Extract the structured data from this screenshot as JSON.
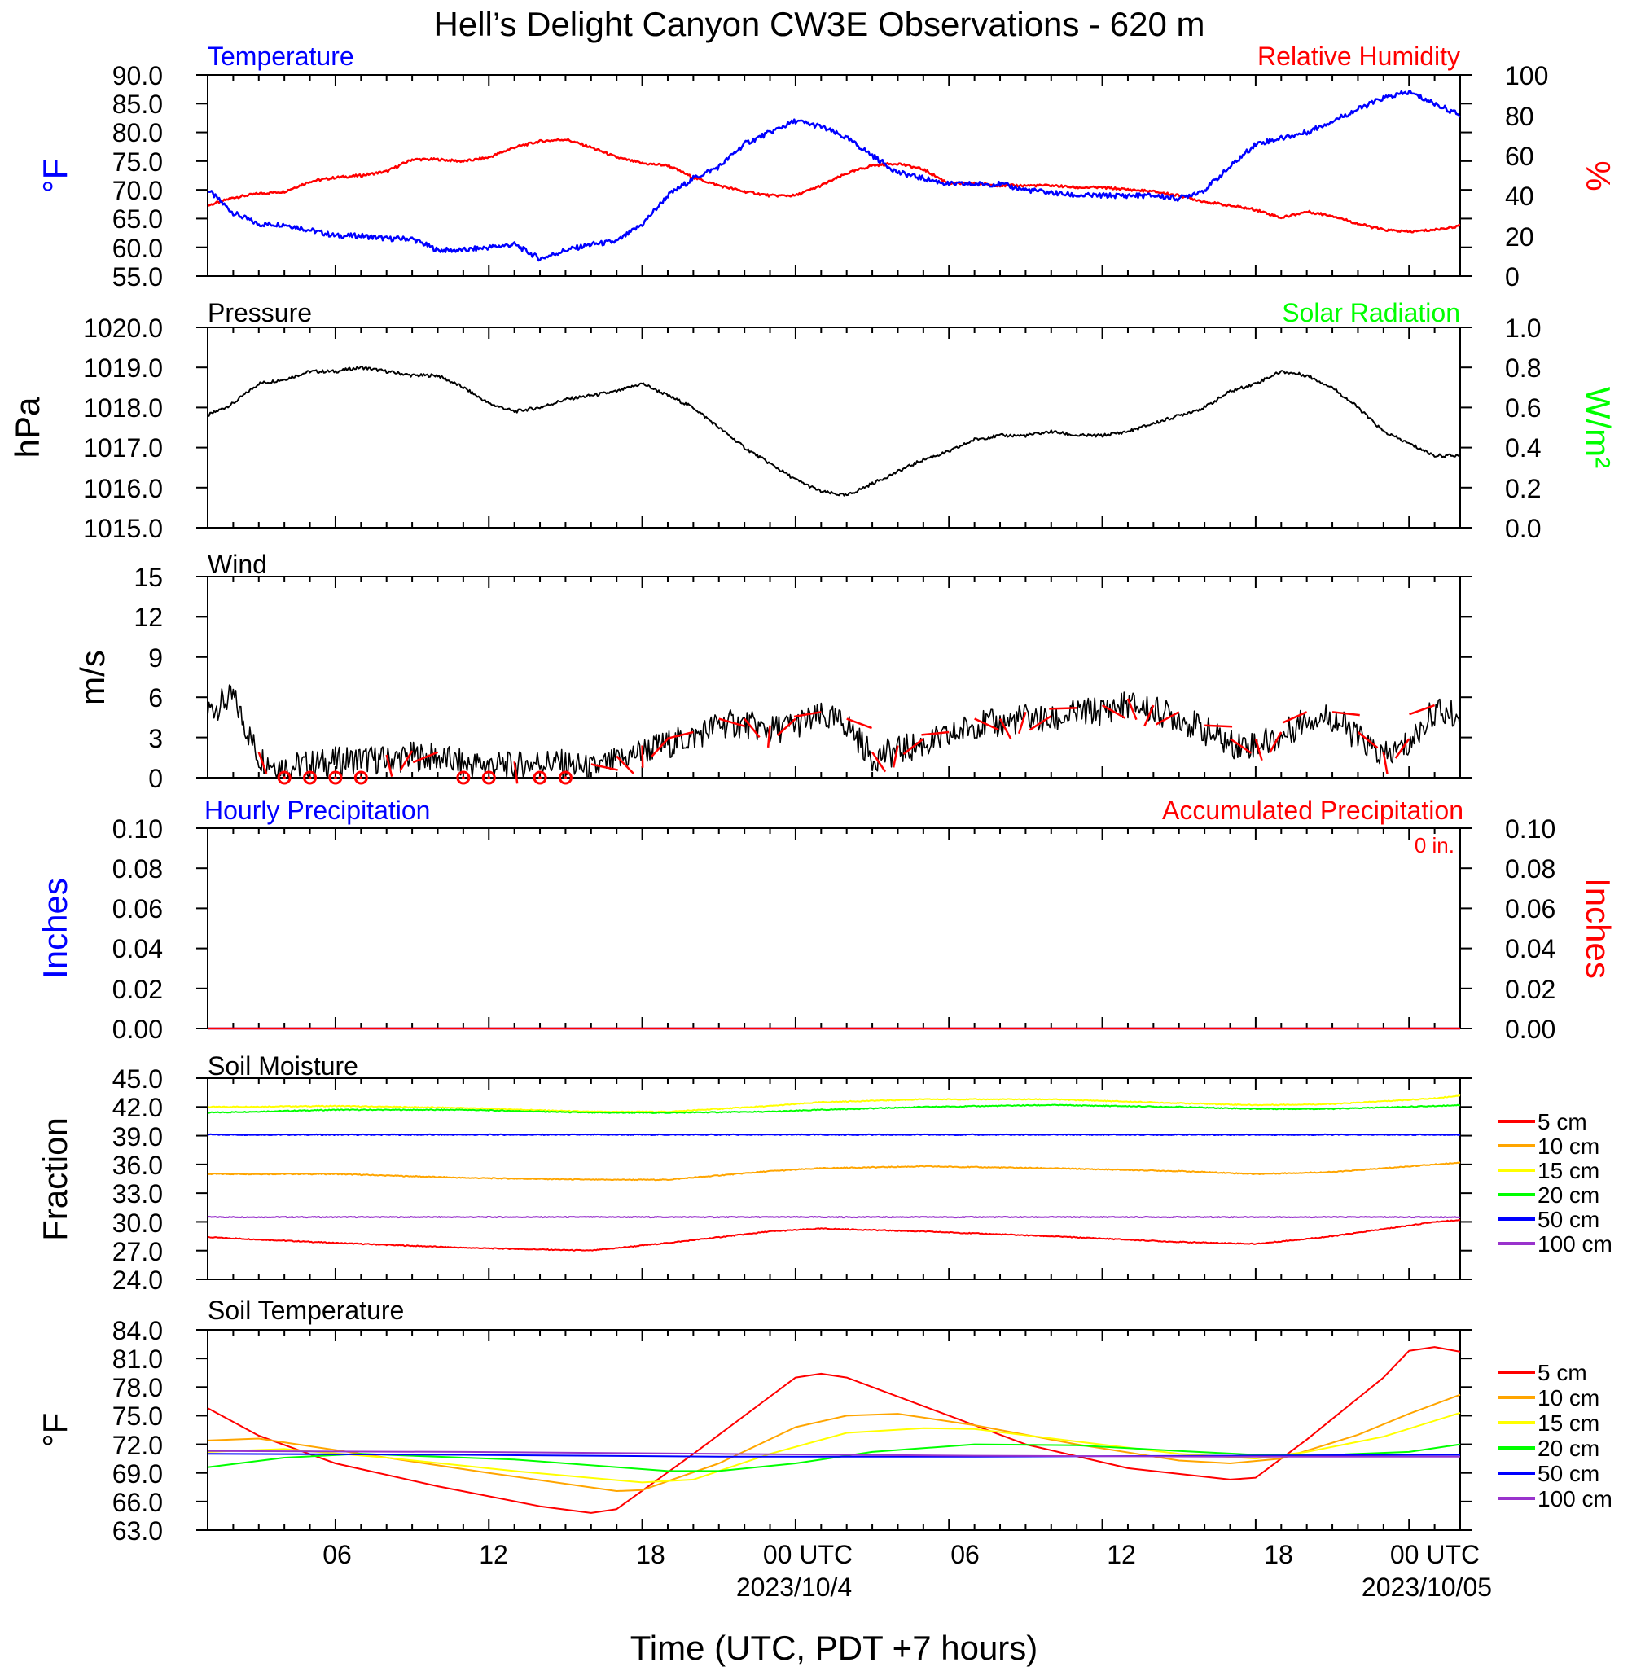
{
  "title": "Hell’s Delight Canyon CW3E Observations - 620 m",
  "x_axis": {
    "title": "Time (UTC, PDT +7 hours)",
    "ticks": [
      "06",
      "12",
      "18",
      "00 UTC",
      "06",
      "12",
      "18",
      "00 UTC"
    ],
    "dates": [
      "2023/10/4",
      "2023/10/05"
    ]
  },
  "colors": {
    "temperature": "#0000ff",
    "humidity": "#ff0000",
    "pressure": "#000000",
    "solar": "#00ff00",
    "wind": "#000000",
    "barbs": "#ff0000",
    "hourly_precip": "#0000ff",
    "accum_precip": "#ff0000",
    "5 cm": "#ff0000",
    "10 cm": "#ffa500",
    "15 cm": "#ffff00",
    "20 cm": "#00ff00",
    "50 cm": "#0000ff",
    "100 cm": "#9933cc"
  },
  "panels": {
    "temp": {
      "left_title": "Temperature",
      "right_title": "Relative Humidity",
      "left_unit": "°F",
      "right_unit": "%",
      "left_ticks": [
        "90.0",
        "85.0",
        "80.0",
        "75.0",
        "70.0",
        "65.0",
        "60.0",
        "55.0"
      ],
      "right_ticks": [
        "100",
        "80",
        "60",
        "40",
        "20",
        "0"
      ]
    },
    "pressure": {
      "left_title": "Pressure",
      "right_title": "Solar Radiation",
      "left_unit": "hPa",
      "right_unit": "W/m²",
      "left_ticks": [
        "1020.0",
        "1019.0",
        "1018.0",
        "1017.0",
        "1016.0",
        "1015.0"
      ],
      "right_ticks": [
        "1.0",
        "0.8",
        "0.6",
        "0.4",
        "0.2",
        "0.0"
      ]
    },
    "wind": {
      "left_title": "Wind",
      "left_unit": "m/s",
      "left_ticks": [
        "15",
        "12",
        "9",
        "6",
        "3",
        "0"
      ]
    },
    "precip": {
      "left_title": "Hourly Precipitation",
      "right_title": "Accumulated Precipitation",
      "total_label": "0 in.",
      "left_unit": "Inches",
      "right_unit": "Inches",
      "left_ticks": [
        "0.10",
        "0.08",
        "0.06",
        "0.04",
        "0.02",
        "0.00"
      ],
      "right_ticks": [
        "0.10",
        "0.08",
        "0.06",
        "0.04",
        "0.02",
        "0.00"
      ]
    },
    "soil_moisture": {
      "left_title": "Soil Moisture",
      "left_unit": "Fraction",
      "left_ticks": [
        "45.0",
        "42.0",
        "39.0",
        "36.0",
        "33.0",
        "30.0",
        "27.0",
        "24.0"
      ],
      "legend": [
        "5 cm",
        "10 cm",
        "15 cm",
        "20 cm",
        "50 cm",
        "100 cm"
      ]
    },
    "soil_temp": {
      "left_title": "Soil Temperature",
      "left_unit": "°F",
      "left_ticks": [
        "84.0",
        "81.0",
        "78.0",
        "75.0",
        "72.0",
        "69.0",
        "66.0",
        "63.0"
      ],
      "legend": [
        "5 cm",
        "10 cm",
        "15 cm",
        "20 cm",
        "50 cm",
        "100 cm"
      ]
    }
  },
  "chart_data": [
    {
      "panel": "temp",
      "type": "line",
      "x_unit": "hours since 2023-10-03 01:00 UTC",
      "xlim": [
        0,
        49
      ],
      "series": [
        {
          "name": "Temperature",
          "axis": "left",
          "ylim": [
            55,
            90
          ],
          "x": [
            0,
            1,
            2,
            3,
            4,
            5,
            6,
            7,
            8,
            9,
            10,
            11,
            12,
            13,
            14,
            15,
            16,
            17,
            18,
            19,
            20,
            21,
            22,
            23,
            24,
            25,
            26,
            27,
            28,
            29,
            30,
            31,
            32,
            33,
            34,
            35,
            36,
            37,
            38,
            39,
            40,
            41,
            42,
            43,
            44,
            45,
            46,
            47,
            48,
            49
          ],
          "y": [
            70,
            66,
            64,
            64,
            63,
            62,
            62,
            61.5,
            61.5,
            59.5,
            59.5,
            60,
            60.5,
            58,
            59.5,
            60.5,
            61,
            64,
            69,
            72,
            74,
            78,
            80,
            82,
            81,
            79,
            76,
            73,
            72,
            71,
            71,
            71,
            70,
            69.5,
            69,
            69,
            69,
            69,
            68.5,
            70,
            74,
            78,
            79,
            80,
            82,
            84,
            86,
            87,
            85,
            83
          ]
        },
        {
          "name": "Relative Humidity",
          "axis": "right",
          "ylim": [
            0,
            100
          ],
          "x": [
            0,
            1,
            2,
            3,
            4,
            5,
            6,
            7,
            8,
            9,
            10,
            11,
            12,
            13,
            14,
            15,
            16,
            17,
            18,
            19,
            20,
            21,
            22,
            23,
            24,
            25,
            26,
            27,
            28,
            29,
            30,
            31,
            32,
            33,
            34,
            35,
            36,
            37,
            38,
            39,
            40,
            41,
            42,
            43,
            44,
            45,
            46,
            47,
            48,
            49
          ],
          "y": [
            35,
            39,
            41,
            42,
            47,
            49,
            50,
            52,
            58,
            58,
            57,
            59,
            64,
            67,
            68,
            64,
            59,
            56,
            55,
            49,
            45,
            42,
            40,
            40,
            45,
            51,
            55,
            56,
            53,
            46,
            46,
            45,
            45,
            45,
            44,
            44,
            43,
            42,
            40,
            37,
            35,
            33,
            29,
            32,
            30,
            26,
            23,
            22,
            23,
            25
          ]
        }
      ]
    },
    {
      "panel": "pressure",
      "type": "line",
      "series": [
        {
          "name": "Pressure",
          "axis": "left",
          "ylim": [
            1015,
            1020
          ],
          "x": [
            0,
            1,
            2,
            3,
            4,
            5,
            6,
            7,
            8,
            9,
            10,
            11,
            12,
            13,
            14,
            15,
            16,
            17,
            18,
            19,
            20,
            21,
            22,
            23,
            24,
            25,
            26,
            27,
            28,
            29,
            30,
            31,
            32,
            33,
            34,
            35,
            36,
            37,
            38,
            39,
            40,
            41,
            42,
            43,
            44,
            45,
            46,
            47,
            48,
            49
          ],
          "y": [
            1017.8,
            1018.1,
            1018.6,
            1018.7,
            1018.9,
            1018.9,
            1019.0,
            1018.9,
            1018.8,
            1018.8,
            1018.5,
            1018.1,
            1017.9,
            1018.0,
            1018.2,
            1018.3,
            1018.4,
            1018.6,
            1018.3,
            1018.0,
            1017.5,
            1017.0,
            1016.6,
            1016.2,
            1015.9,
            1015.8,
            1016.1,
            1016.4,
            1016.7,
            1016.9,
            1017.2,
            1017.3,
            1017.3,
            1017.4,
            1017.3,
            1017.3,
            1017.4,
            1017.6,
            1017.8,
            1018.0,
            1018.4,
            1018.6,
            1018.9,
            1018.8,
            1018.5,
            1018.0,
            1017.4,
            1017.1,
            1016.8,
            1016.8
          ]
        }
      ]
    },
    {
      "panel": "wind",
      "type": "line",
      "ylim": [
        0,
        15
      ],
      "series": [
        {
          "name": "Wind speed",
          "x": [
            0,
            1,
            2,
            3,
            4,
            5,
            6,
            7,
            8,
            9,
            10,
            11,
            12,
            13,
            14,
            15,
            16,
            17,
            18,
            19,
            20,
            21,
            22,
            23,
            24,
            25,
            26,
            27,
            28,
            29,
            30,
            31,
            32,
            33,
            34,
            35,
            36,
            37,
            38,
            39,
            40,
            41,
            42,
            43,
            44,
            45,
            46,
            47,
            48,
            49
          ],
          "y": [
            5,
            6,
            1.5,
            0.8,
            1.0,
            1.2,
            1.4,
            1.3,
            1.6,
            1.5,
            1.0,
            1.0,
            0.8,
            1.2,
            1.0,
            0.6,
            1.2,
            2.0,
            2.5,
            3.0,
            4.0,
            4.0,
            3.5,
            4.0,
            4.5,
            4.0,
            1.5,
            2.0,
            2.5,
            3.0,
            4.0,
            4.0,
            4.5,
            4.2,
            4.8,
            5.0,
            5.5,
            5.0,
            4.5,
            3.5,
            2.5,
            2.5,
            3.0,
            4.5,
            4.5,
            3.0,
            1.5,
            2.5,
            5.0,
            4.5
          ]
        },
        {
          "name": "Calm",
          "x": [
            3,
            4,
            5,
            6,
            10,
            11,
            13,
            14
          ],
          "y": [
            0,
            0,
            0,
            0,
            0,
            0,
            0,
            0
          ]
        }
      ]
    },
    {
      "panel": "precip",
      "type": "line",
      "ylim": [
        0,
        0.1
      ],
      "series": [
        {
          "name": "Hourly Precipitation",
          "axis": "left",
          "x": [
            0,
            49
          ],
          "y": [
            0,
            0
          ]
        },
        {
          "name": "Accumulated Precipitation",
          "axis": "right",
          "x": [
            0,
            49
          ],
          "y": [
            0,
            0
          ]
        }
      ]
    },
    {
      "panel": "soil_moisture",
      "type": "line",
      "ylim": [
        24,
        45
      ],
      "series": [
        {
          "name": "5 cm",
          "x": [
            0,
            5,
            10,
            15,
            18,
            22,
            24,
            28,
            33,
            38,
            41,
            44,
            48,
            49
          ],
          "y": [
            28.4,
            27.8,
            27.3,
            27.0,
            27.8,
            29.0,
            29.3,
            29.0,
            28.5,
            27.9,
            27.7,
            28.5,
            30.0,
            30.2
          ]
        },
        {
          "name": "10 cm",
          "x": [
            0,
            5,
            10,
            15,
            18,
            22,
            24,
            28,
            33,
            38,
            41,
            44,
            48,
            49
          ],
          "y": [
            35.0,
            35.0,
            34.6,
            34.4,
            34.4,
            35.3,
            35.6,
            35.8,
            35.6,
            35.3,
            35.0,
            35.2,
            36.0,
            36.2
          ]
        },
        {
          "name": "15 cm",
          "x": [
            0,
            5,
            10,
            15,
            18,
            22,
            24,
            28,
            33,
            38,
            41,
            44,
            48,
            49
          ],
          "y": [
            42.0,
            42.1,
            41.9,
            41.5,
            41.5,
            42.1,
            42.5,
            42.8,
            42.8,
            42.4,
            42.2,
            42.3,
            42.9,
            43.2
          ]
        },
        {
          "name": "20 cm",
          "x": [
            0,
            5,
            10,
            15,
            18,
            22,
            24,
            28,
            33,
            38,
            41,
            44,
            48,
            49
          ],
          "y": [
            41.4,
            41.7,
            41.7,
            41.4,
            41.4,
            41.5,
            41.7,
            42.0,
            42.2,
            42.0,
            41.8,
            41.8,
            42.1,
            42.2
          ]
        },
        {
          "name": "50 cm",
          "x": [
            0,
            49
          ],
          "y": [
            39.1,
            39.1
          ]
        },
        {
          "name": "100 cm",
          "x": [
            0,
            49
          ],
          "y": [
            30.5,
            30.5
          ]
        }
      ]
    },
    {
      "panel": "soil_temp",
      "type": "line",
      "ylim": [
        63,
        84
      ],
      "series": [
        {
          "name": "5 cm",
          "x": [
            0,
            2,
            5,
            9,
            13,
            15,
            16,
            19,
            22,
            23,
            24,
            25,
            28,
            32,
            36,
            40,
            41,
            43,
            46,
            47,
            48,
            49
          ],
          "y": [
            75.8,
            72.9,
            70.0,
            67.6,
            65.5,
            64.8,
            65.2,
            71.0,
            77.0,
            79.0,
            79.4,
            79.0,
            76.0,
            72.0,
            69.5,
            68.3,
            68.5,
            72.5,
            79.0,
            81.8,
            82.2,
            81.7
          ]
        },
        {
          "name": "10 cm",
          "x": [
            0,
            2,
            6,
            11,
            16,
            17,
            20,
            23,
            25,
            27,
            30,
            34,
            38,
            40,
            42,
            45,
            47,
            49
          ],
          "y": [
            72.4,
            72.6,
            71.0,
            69.0,
            67.1,
            67.2,
            70.0,
            73.8,
            75.0,
            75.2,
            74.0,
            72.0,
            70.3,
            70.0,
            70.5,
            73.0,
            75.2,
            77.2
          ]
        },
        {
          "name": "15 cm",
          "x": [
            0,
            3,
            7,
            12,
            17,
            19,
            22,
            25,
            28,
            30,
            34,
            38,
            41,
            43,
            46,
            49
          ],
          "y": [
            71.2,
            71.5,
            70.6,
            69.2,
            68.0,
            68.3,
            71.0,
            73.2,
            73.7,
            73.6,
            72.3,
            71.0,
            70.5,
            71.2,
            72.8,
            75.3
          ]
        },
        {
          "name": "20 cm",
          "x": [
            0,
            3,
            6,
            12,
            18,
            20,
            23,
            26,
            30,
            34,
            38,
            41,
            44,
            47,
            49
          ],
          "y": [
            69.6,
            70.6,
            71.0,
            70.4,
            69.2,
            69.2,
            70.0,
            71.2,
            72.0,
            71.9,
            71.3,
            70.9,
            70.9,
            71.2,
            72.0
          ]
        },
        {
          "name": "50 cm",
          "x": [
            0,
            10,
            20,
            30,
            40,
            49
          ],
          "y": [
            71.0,
            70.9,
            70.7,
            70.7,
            70.8,
            70.9
          ]
        },
        {
          "name": "100 cm",
          "x": [
            0,
            10,
            20,
            30,
            40,
            49
          ],
          "y": [
            71.3,
            71.2,
            71.0,
            70.8,
            70.7,
            70.7
          ]
        }
      ]
    }
  ]
}
